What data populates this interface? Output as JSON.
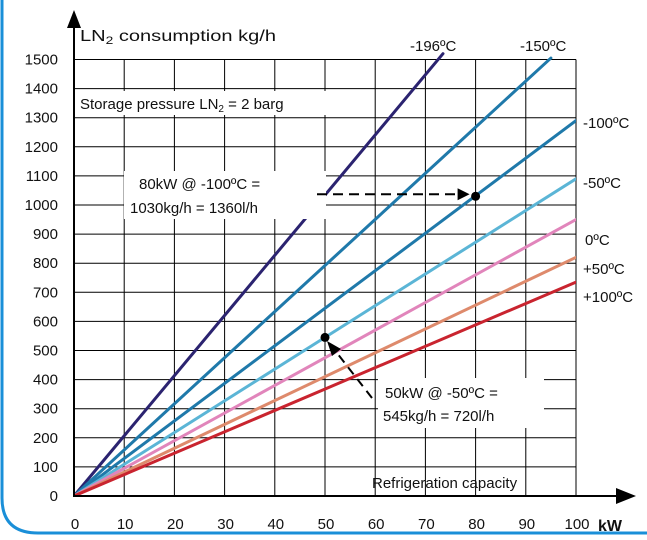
{
  "chart_data": {
    "type": "line",
    "title": "",
    "ylabel_parts": [
      "LN",
      "2",
      " consumption kg/h"
    ],
    "xlabel": "Refrigeration capacity",
    "xunit": "kW",
    "xlim": [
      0,
      100
    ],
    "ylim": [
      0,
      1500
    ],
    "xticks": [
      0,
      10,
      20,
      30,
      40,
      50,
      60,
      70,
      80,
      90,
      100
    ],
    "yticks": [
      0,
      100,
      200,
      300,
      400,
      500,
      600,
      700,
      800,
      900,
      1000,
      1100,
      1200,
      1300,
      1400,
      1500
    ],
    "grid": true,
    "subtitle_parts": [
      "Storage pressure LN",
      "2",
      " = 2 barg"
    ],
    "series": [
      {
        "name": "-196ºC",
        "color": "#2b2370",
        "x": [
          0,
          73.5
        ],
        "y": [
          0,
          1520
        ]
      },
      {
        "name": "-150ºC",
        "color": "#1f79aa",
        "x": [
          0,
          95
        ],
        "y": [
          0,
          1505
        ]
      },
      {
        "name": "-100ºC",
        "color": "#1f79aa",
        "x": [
          0,
          100
        ],
        "y": [
          0,
          1290
        ]
      },
      {
        "name": "-50ºC",
        "color": "#5bb5d6",
        "x": [
          0,
          100
        ],
        "y": [
          0,
          1090
        ]
      },
      {
        "name": "0ºC",
        "color": "#e185bb",
        "x": [
          0,
          100
        ],
        "y": [
          0,
          950
        ]
      },
      {
        "name": "+50ºC",
        "color": "#de8a6c",
        "x": [
          0,
          100
        ],
        "y": [
          0,
          820
        ]
      },
      {
        "name": "+100ºC",
        "color": "#c9242f",
        "x": [
          0,
          100
        ],
        "y": [
          0,
          735
        ]
      }
    ],
    "annotations": [
      {
        "lines": [
          "80kW @ -100ºC =",
          "1030kg/h = 1360l/h"
        ],
        "point": [
          80,
          1030
        ]
      },
      {
        "lines": [
          "50kW @ -50ºC =",
          "545kg/h = 720l/h"
        ],
        "point": [
          50,
          545
        ]
      }
    ]
  }
}
